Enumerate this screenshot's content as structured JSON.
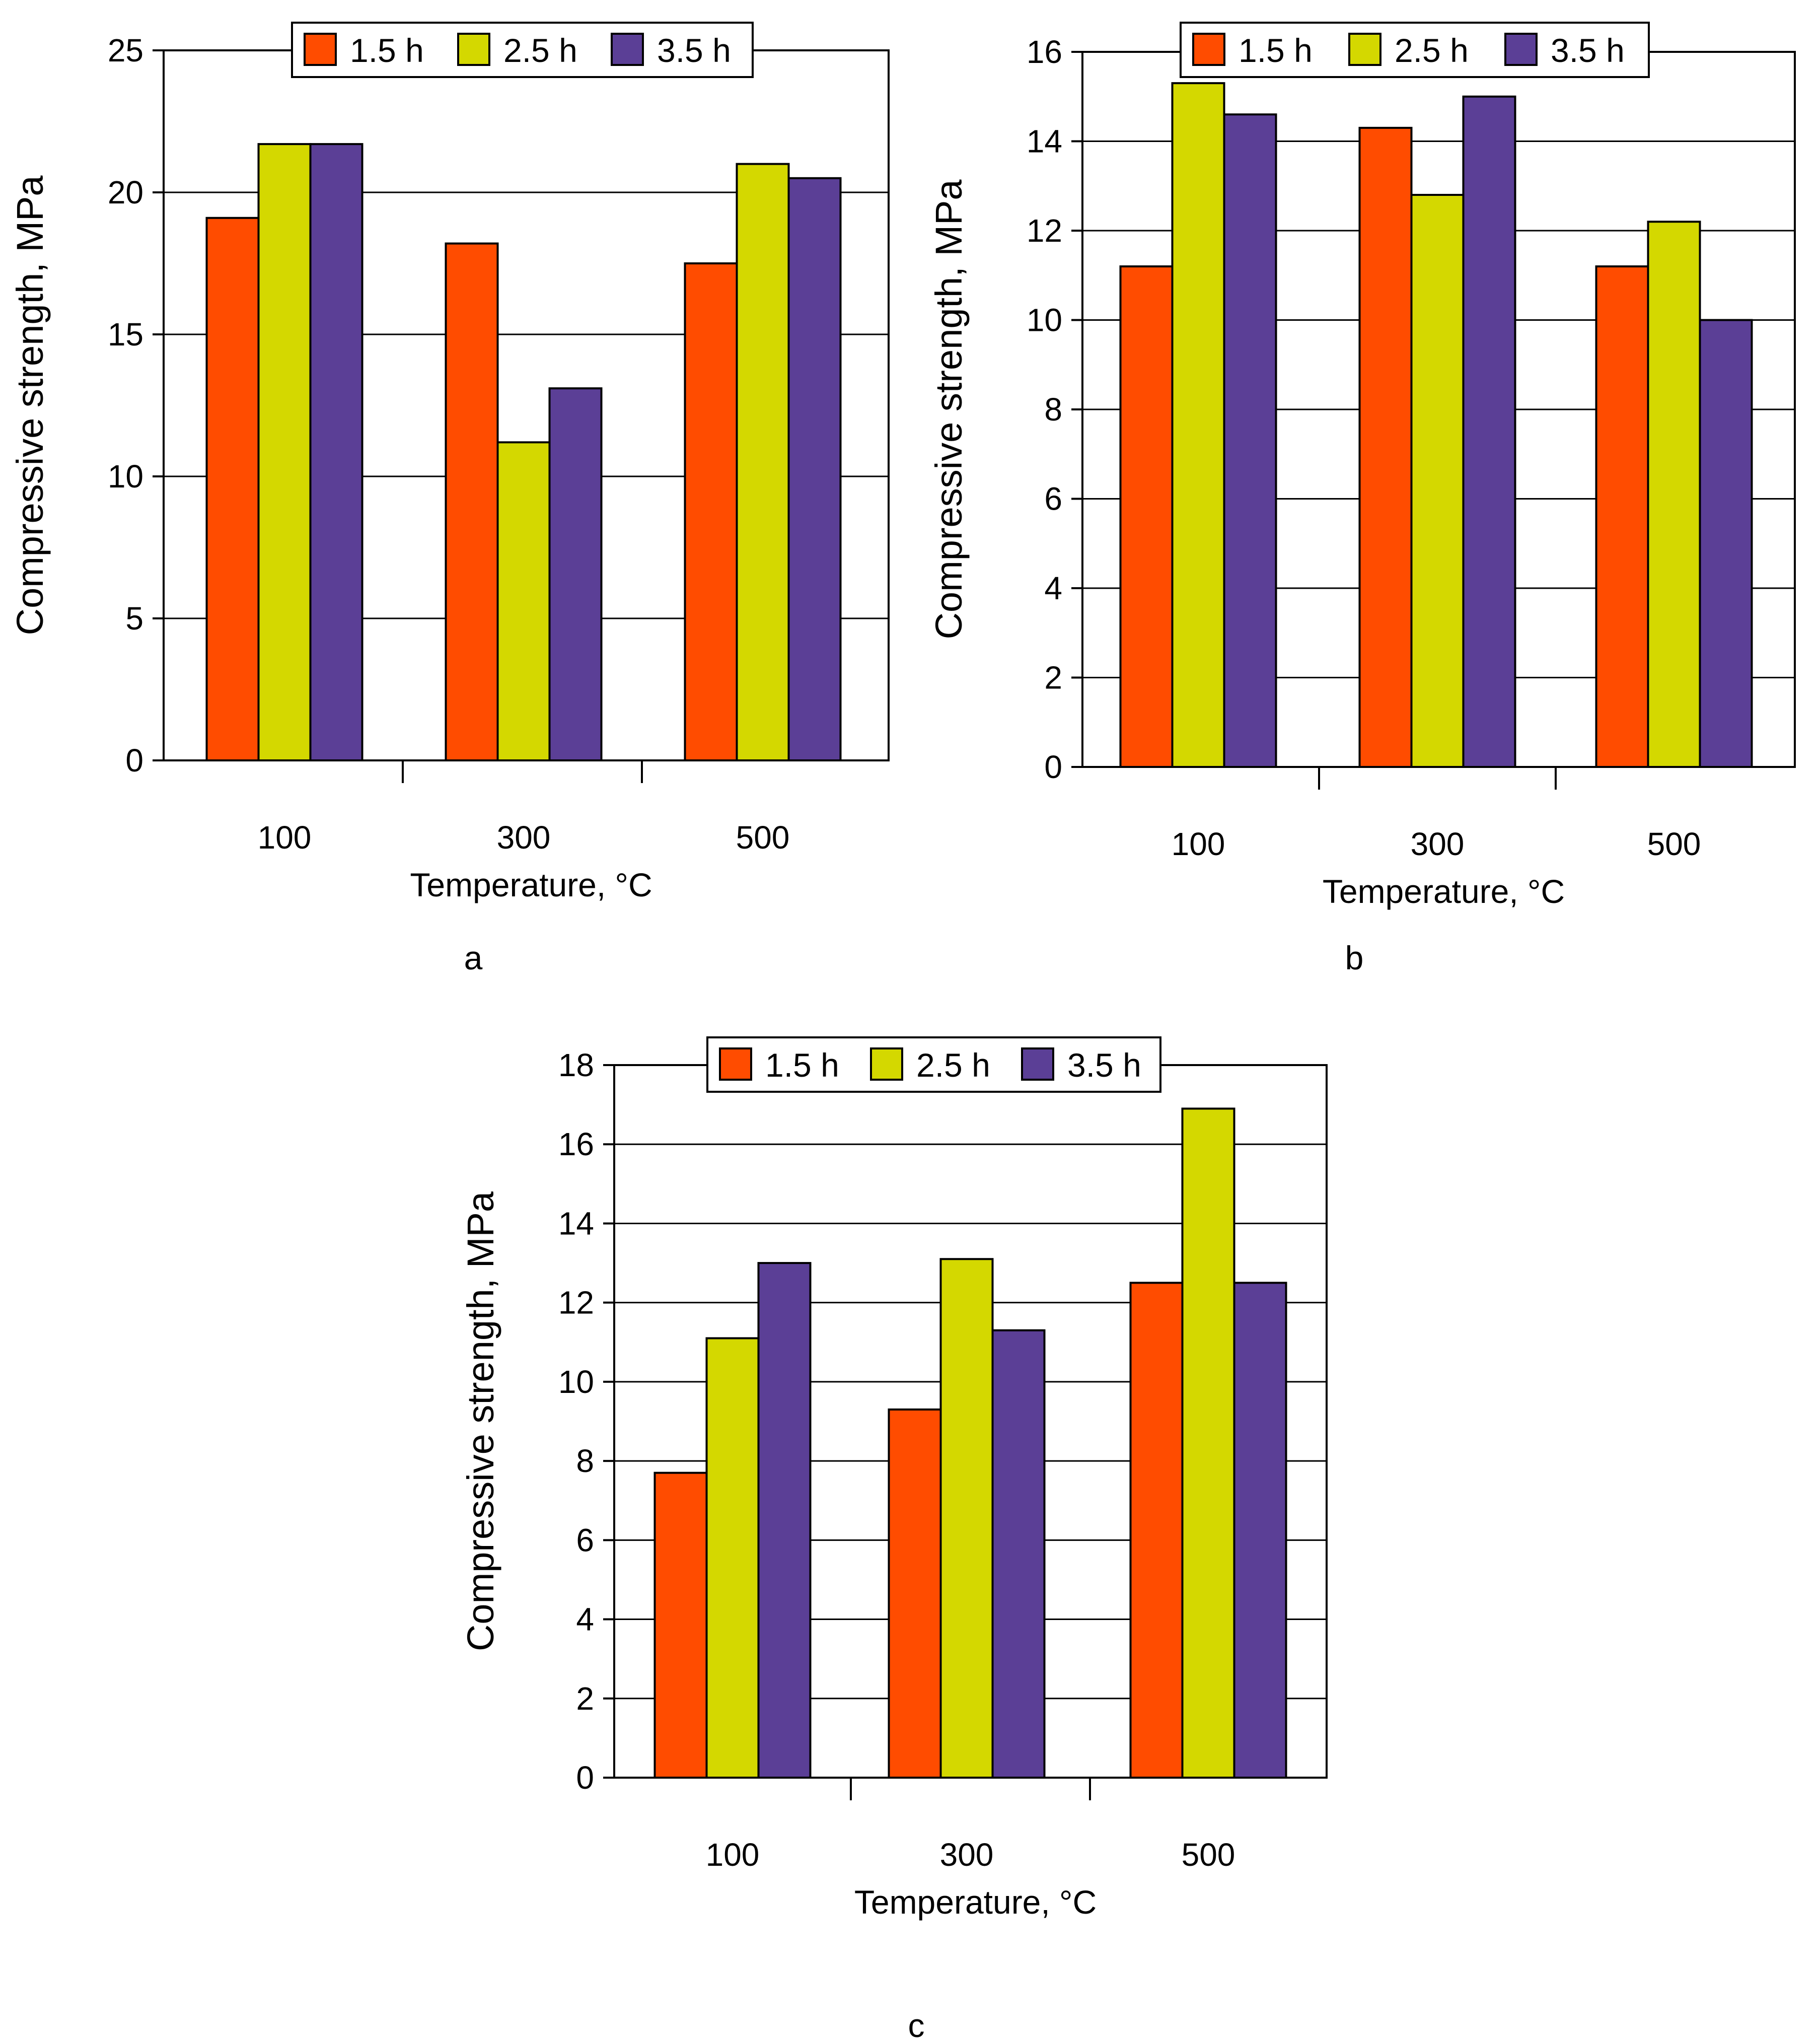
{
  "figure": {
    "background": "#ffffff"
  },
  "series_colors": [
    "#ff4c00",
    "#d4d800",
    "#5b3f96"
  ],
  "chart_data": [
    {
      "panel_label": "a",
      "type": "bar",
      "categories": [
        "100",
        "300",
        "500"
      ],
      "series": [
        {
          "name": "1.5 h",
          "values": [
            19.1,
            18.2,
            17.5
          ]
        },
        {
          "name": "2.5 h",
          "values": [
            21.7,
            11.2,
            21.0
          ]
        },
        {
          "name": "3.5 h",
          "values": [
            21.7,
            13.1,
            20.5
          ]
        }
      ],
      "xlabel": "Temperature, °C",
      "ylabel": "Compressive strength, MPa",
      "ylim": [
        0,
        25
      ],
      "yticks": [
        0,
        5,
        10,
        15,
        20,
        25
      ],
      "legend": "top-center",
      "grid": true
    },
    {
      "panel_label": "b",
      "type": "bar",
      "categories": [
        "100",
        "300",
        "500"
      ],
      "series": [
        {
          "name": "1.5 h",
          "values": [
            11.2,
            14.3,
            11.2
          ]
        },
        {
          "name": "2.5 h",
          "values": [
            15.3,
            12.8,
            12.2
          ]
        },
        {
          "name": "3.5 h",
          "values": [
            14.6,
            15.0,
            10.0
          ]
        }
      ],
      "xlabel": "Temperature, °C",
      "ylabel": "Compressive strength, MPa",
      "ylim": [
        0,
        16
      ],
      "yticks": [
        0,
        2,
        4,
        6,
        8,
        10,
        12,
        14,
        16
      ],
      "legend": "top-center",
      "grid": true
    },
    {
      "panel_label": "c",
      "type": "bar",
      "categories": [
        "100",
        "300",
        "500"
      ],
      "series": [
        {
          "name": "1.5 h",
          "values": [
            7.7,
            9.3,
            12.5
          ]
        },
        {
          "name": "2.5 h",
          "values": [
            11.1,
            13.1,
            16.9
          ]
        },
        {
          "name": "3.5 h",
          "values": [
            13.0,
            11.3,
            12.5
          ]
        }
      ],
      "xlabel": "Temperature, °C",
      "ylabel": "Compressive strength, MPa",
      "ylim": [
        0,
        18
      ],
      "yticks": [
        0,
        2,
        4,
        6,
        8,
        10,
        12,
        14,
        16,
        18
      ],
      "legend": "top-center",
      "grid": true
    }
  ]
}
